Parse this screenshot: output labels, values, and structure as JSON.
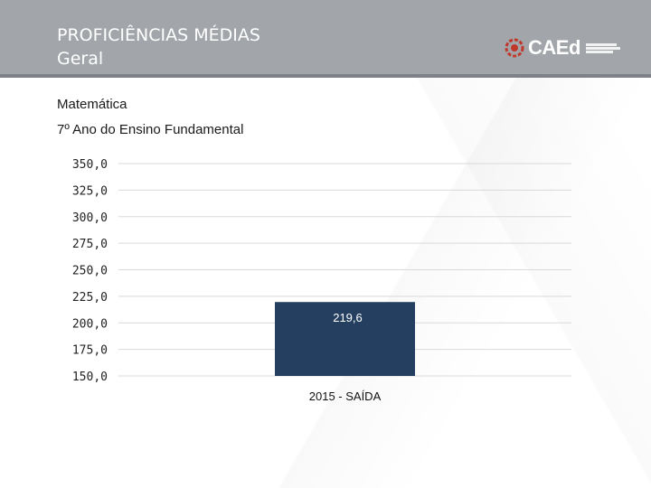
{
  "header": {
    "title_line1": "PROFICIÊNCIAS MÉDIAS",
    "title_line2": "Geral",
    "logo_text": "CAEd"
  },
  "subject": "Matemática",
  "grade": "7º Ano do Ensino Fundamental",
  "colors": {
    "bar": "#243f60",
    "header_bg": "#a2a6aa",
    "grid": "#d9d9d9"
  },
  "chart_data": {
    "type": "bar",
    "categories": [
      "2015 - SAÍDA"
    ],
    "values": [
      219.6
    ],
    "value_labels": [
      "219,6"
    ],
    "ylim": [
      150,
      350
    ],
    "yticks": [
      350,
      325,
      300,
      275,
      250,
      225,
      200,
      175,
      150
    ],
    "ytick_labels": [
      "350,0",
      "325,0",
      "300,0",
      "275,0",
      "250,0",
      "225,0",
      "200,0",
      "175,0",
      "150,0"
    ],
    "title": "",
    "xlabel": "",
    "ylabel": "",
    "grid": true
  }
}
